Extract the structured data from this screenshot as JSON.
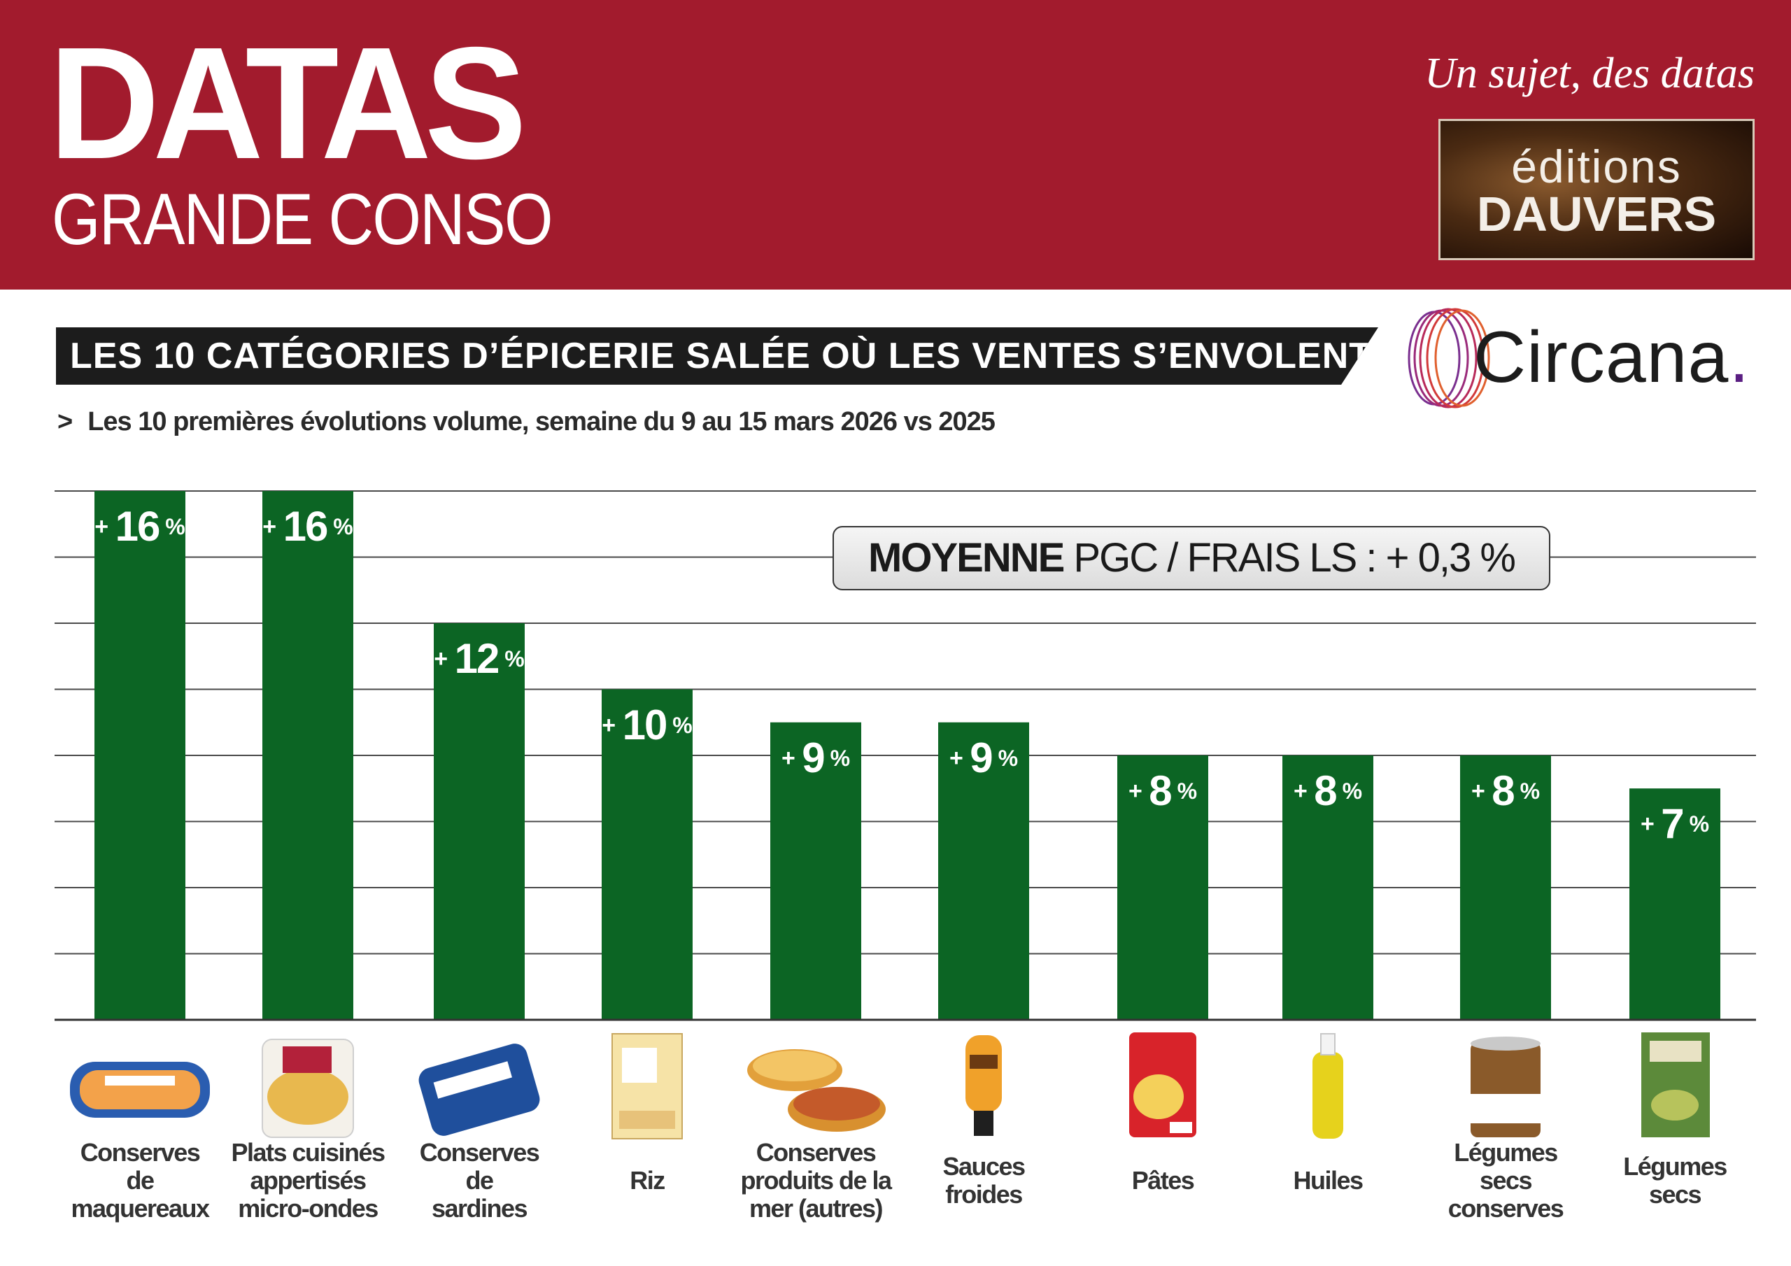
{
  "header": {
    "brand_main": "DATAS",
    "brand_sub": "GRANDE CONSO",
    "tagline": "Un sujet, des datas",
    "publisher_line1": "éditions",
    "publisher_line2": "DAUVERS"
  },
  "source": {
    "name": "Circana",
    "dot": "."
  },
  "subtitle_marker": ">",
  "average": {
    "label_strong": "MOYENNE",
    "label_rest": " PGC / FRAIS LS : + 0,3 %"
  },
  "colors": {
    "header_bg": "#a21b2d",
    "bar": "#0c6524",
    "banner_bg": "#1c1c1c",
    "source_accent": "#5a1e82"
  },
  "chart_data": {
    "type": "bar",
    "title": "LES 10 CATÉGORIES D’ÉPICERIE SALÉE OÙ LES VENTES S’ENVOLENT",
    "subtitle": "Les 10 premières évolutions volume, semaine du 9 au 15 mars 2026 vs 2025",
    "unit": "%",
    "ylim": [
      0,
      16
    ],
    "grid": true,
    "categories": [
      "Conserves de maquereaux",
      "Plats cuisinés appertisés micro-ondes",
      "Conserves de sardines",
      "Riz",
      "Conserves produits de la mer (autres)",
      "Sauces froides",
      "Pâtes",
      "Huiles",
      "Légumes secs conserves",
      "Légumes secs"
    ],
    "label_lines": [
      [
        "Conserves",
        "de",
        "maquereaux"
      ],
      [
        "Plats cuisinés",
        "appertisés",
        "micro-ondes"
      ],
      [
        "Conserves",
        "de",
        "sardines"
      ],
      [
        "Riz"
      ],
      [
        "Conserves",
        "produits de la",
        "mer (autres)"
      ],
      [
        "Sauces",
        "froides"
      ],
      [
        "Pâtes"
      ],
      [
        "Huiles"
      ],
      [
        "Légumes",
        "secs",
        "conserves"
      ],
      [
        "Légumes",
        "secs"
      ]
    ],
    "icons": [
      "mackerel-can-icon",
      "ready-meal-bowl-icon",
      "sardine-can-icon",
      "rice-box-icon",
      "seafood-cans-icon",
      "sauce-bottle-icon",
      "pasta-pack-icon",
      "oil-bottle-icon",
      "lentil-can-icon",
      "split-pea-box-icon"
    ],
    "values": [
      16,
      16,
      12,
      10,
      9,
      9,
      8,
      8,
      8,
      7
    ],
    "value_labels": [
      "16",
      "16",
      "12",
      "10",
      "9",
      "9",
      "8",
      "8",
      "8",
      "7"
    ]
  }
}
